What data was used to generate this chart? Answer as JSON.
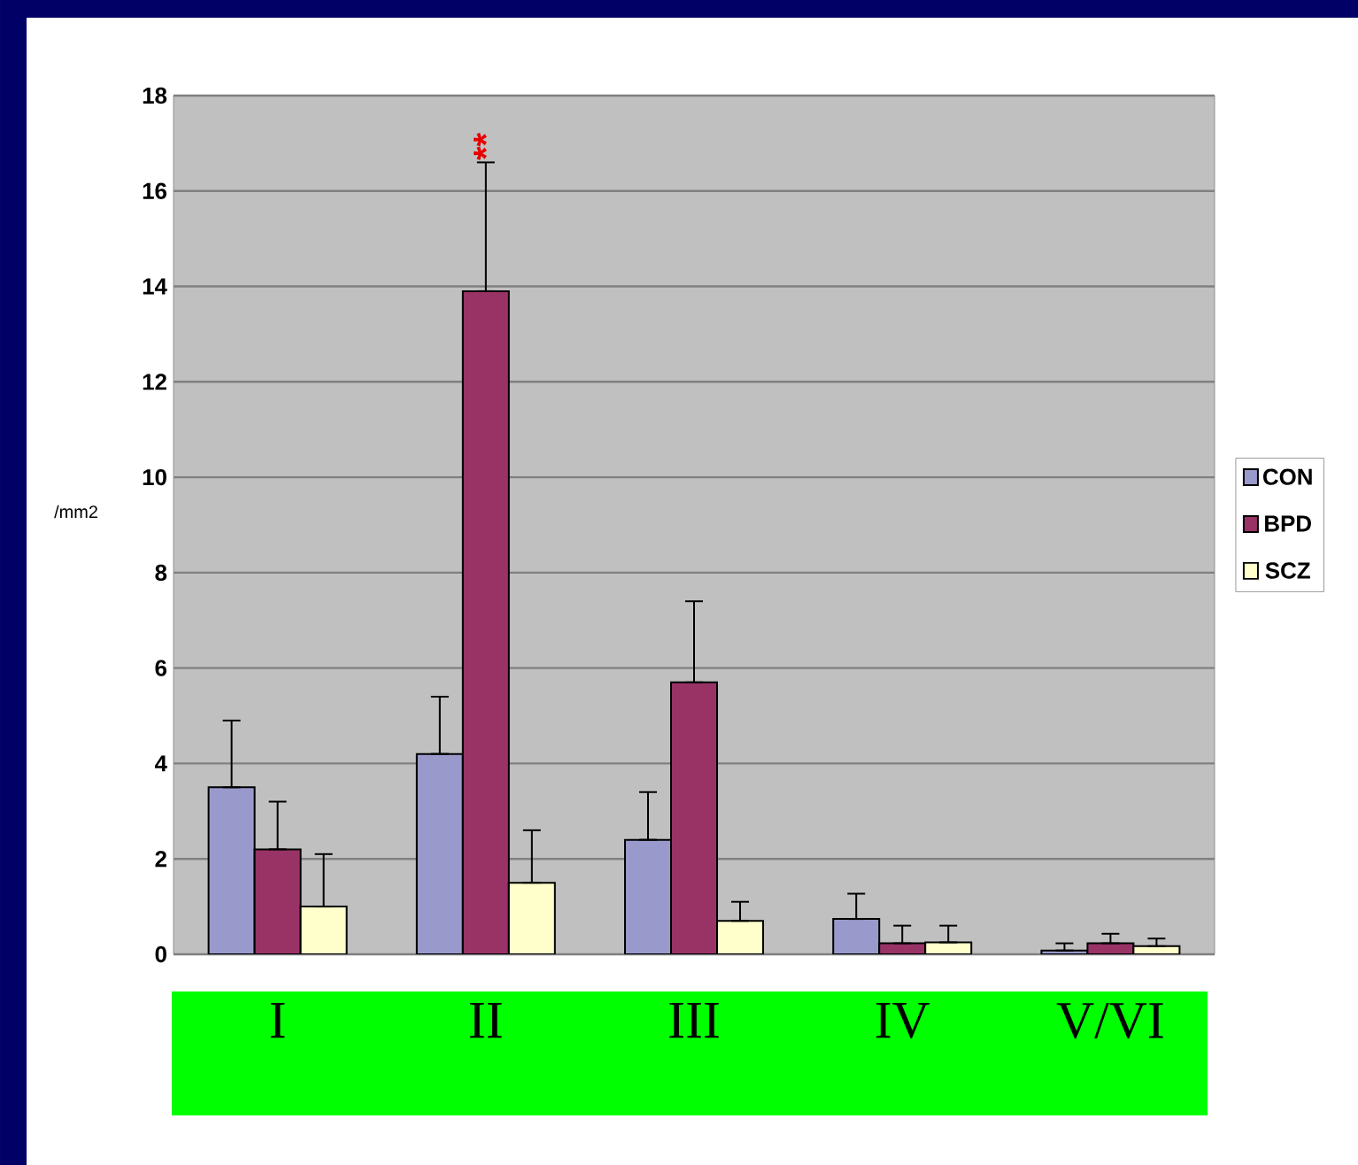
{
  "chart_data": {
    "type": "bar",
    "ylabel": "/mm2",
    "categories": [
      "I",
      "II",
      "III",
      "IV",
      "V/VI"
    ],
    "series": [
      {
        "name": "CON",
        "color": "#9999cc",
        "values": [
          3.5,
          4.2,
          2.4,
          0.74,
          0.08
        ],
        "errors": [
          [
            3.5,
            4.9
          ],
          [
            4.2,
            5.4
          ],
          [
            2.4,
            3.4
          ],
          [
            0.74,
            1.27
          ],
          [
            0.08,
            0.23
          ]
        ]
      },
      {
        "name": "BPD",
        "color": "#993366",
        "values": [
          2.2,
          13.9,
          5.7,
          0.23,
          0.23
        ],
        "errors": [
          [
            2.2,
            3.2
          ],
          [
            13.9,
            16.6
          ],
          [
            5.7,
            7.4
          ],
          [
            0.23,
            0.6
          ],
          [
            0.23,
            0.43
          ]
        ]
      },
      {
        "name": "SCZ",
        "color": "#ffffcc",
        "values": [
          1.0,
          1.5,
          0.7,
          0.25,
          0.17
        ],
        "errors": [
          [
            1.0,
            2.1
          ],
          [
            1.5,
            2.6
          ],
          [
            0.7,
            1.1
          ],
          [
            0.25,
            0.6
          ],
          [
            0.17,
            0.33
          ]
        ]
      }
    ],
    "ylim": [
      0,
      18
    ],
    "yticks": [
      0,
      2,
      4,
      6,
      8,
      10,
      12,
      14,
      16,
      18
    ],
    "grid": "y",
    "legend": "right",
    "annotations": [
      {
        "text": "**",
        "x": "II",
        "y": 16.6
      }
    ]
  }
}
